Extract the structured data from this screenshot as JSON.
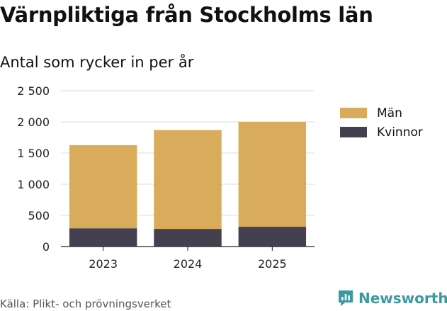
{
  "title": "Värnpliktiga från Stockholms län",
  "subtitle": "Antal som rycker in per år",
  "source": "Källa: Plikt- och prövningsverket",
  "brand": {
    "name": "Newsworthy",
    "color": "#3a9aa0",
    "icon": "newsworthy-logo-icon"
  },
  "chart_data": {
    "type": "bar",
    "stacked": true,
    "categories": [
      "2023",
      "2024",
      "2025"
    ],
    "series": [
      {
        "name": "Kvinnor",
        "color": "#45404f",
        "values": [
          293,
          283,
          317
        ]
      },
      {
        "name": "Män",
        "color": "#d9ac5b",
        "values": [
          1334,
          1585,
          1683
        ]
      }
    ],
    "yticks": [
      0,
      500,
      1000,
      1500,
      2000,
      2500
    ],
    "ytick_labels": [
      "0",
      "500",
      "1 000",
      "1 500",
      "2 000",
      "2 500"
    ],
    "ylim": [
      0,
      2500
    ],
    "grid": true,
    "legend": [
      {
        "name": "Män",
        "color": "#d9ac5b"
      },
      {
        "name": "Kvinnor",
        "color": "#45404f"
      }
    ],
    "legend_position": "right"
  }
}
